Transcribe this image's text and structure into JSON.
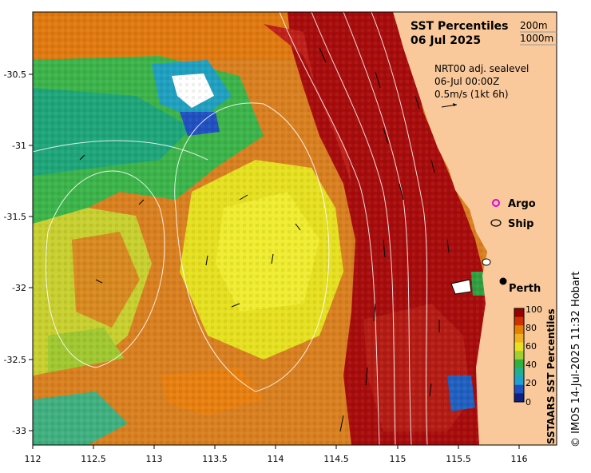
{
  "map": {
    "title": "SST Percentiles",
    "date": "06 Jul 2025",
    "contours": [
      "200m",
      "1000m"
    ],
    "current_info": [
      "NRT00 adj. sealevel",
      "06-Jul 00:00Z",
      "0.5m/s (1kt 6h)"
    ],
    "legend": {
      "argo": "Argo",
      "ship": "Ship"
    },
    "place": "Perth",
    "colorbar": {
      "title": "SSTAARS SST Percentiles",
      "ticks": [
        "100",
        "80",
        "60",
        "40",
        "20",
        "0"
      ],
      "colors": [
        "#990000",
        "#cc3300",
        "#e68000",
        "#f0b020",
        "#e8e020",
        "#a0d030",
        "#30b040",
        "#20b090",
        "#20a0d0",
        "#2050c0",
        "#102080"
      ]
    },
    "x_ticks": [
      "112",
      "112.5",
      "113",
      "113.5",
      "114",
      "114.5",
      "115",
      "115.5",
      "116"
    ],
    "y_ticks": [
      "-30.5",
      "-31",
      "-31.5",
      "-32",
      "-32.5",
      "-33"
    ],
    "colors": {
      "land": "#f9c99b",
      "ocean_warm": "#b01010",
      "ocean_mid": "#e6a020",
      "ocean_cool": "#20a050"
    }
  },
  "copyright": "© IMOS 14-Jul-2025 11:32 Hobart"
}
